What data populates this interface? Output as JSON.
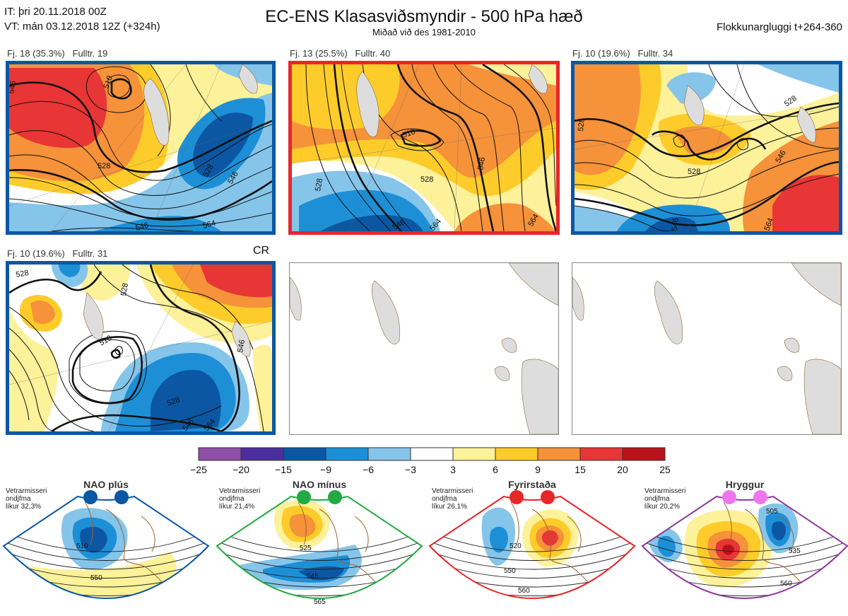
{
  "header": {
    "it_line": "IT: þri 20.11.2018 00Z",
    "vt_line": "VT: mán 03.12.2018 12Z  (+324h)",
    "title": "EC-ENS Klasasviðsmyndir - 500 hPa hæð",
    "subtitle": "Miðað við des 1981-2010",
    "window": "Flokkunargluggi t+264-360"
  },
  "panels": [
    {
      "label": "Fj. 18 (35.3%)",
      "fulltr": "Fulltr. 19",
      "border": "#0b57a4",
      "contours": [
        "528",
        "510",
        "546",
        "528",
        "546",
        "564",
        "546"
      ]
    },
    {
      "label": "Fj. 13 (25.5%)",
      "fulltr": "Fulltr. 40",
      "border": "#e8262a",
      "contours": [
        "510",
        "528",
        "546",
        "564",
        "546",
        "564",
        "528"
      ]
    },
    {
      "label": "Fj. 10 (19.6%)",
      "fulltr": "Fulltr. 34",
      "border": "#0b57a4",
      "contours": [
        "528",
        "528",
        "546",
        "564",
        "546",
        "528"
      ]
    },
    {
      "label": "Fj. 10 (19.6%)",
      "fulltr": "Fulltr. 31",
      "tag": "CR",
      "border": "#0b57a4",
      "contours": [
        "528",
        "510",
        "528",
        "546",
        "528",
        "546",
        "564"
      ]
    }
  ],
  "colorbar": {
    "ticks": [
      "−25",
      "−20",
      "−15",
      "−9",
      "−6",
      "−3",
      "3",
      "6",
      "9",
      "15",
      "20",
      "25"
    ],
    "colors": [
      "#8e4fa8",
      "#4b2f9e",
      "#0b57a4",
      "#1d8fd6",
      "#86c5ea",
      "#ffffff",
      "#fdf19a",
      "#fdcc2a",
      "#f5923a",
      "#e83535",
      "#b8121b"
    ]
  },
  "regimes": [
    {
      "name": "NAO plús",
      "note1": "Vetrarmisseri",
      "note2": "ondjfma",
      "note3": "líkur 32,3%",
      "dot": "#0b57a4",
      "border": "#0b57a4",
      "contours": [
        "510",
        "550"
      ]
    },
    {
      "name": "NAO mínus",
      "note1": "Vetrarmisseri",
      "note2": "ondjfma",
      "note3": "líkur 21,4%",
      "dot": "#22aa44",
      "border": "#22aa44",
      "contours": [
        "525",
        "545",
        "565"
      ]
    },
    {
      "name": "Fyrirstaða",
      "note1": "Vetrarmisseri",
      "note2": "ondjfma",
      "note3": "líkur 26,1%",
      "dot": "#e8262a",
      "border": "#e8262a",
      "contours": [
        "520",
        "550",
        "560"
      ]
    },
    {
      "name": "Hryggur",
      "note1": "Vetrarmisseri",
      "note2": "ondjfma",
      "note3": "líkur 20,2%",
      "dot": "#ee77ee",
      "border": "#8e3a9a",
      "contours": [
        "505",
        "535",
        "560"
      ]
    }
  ]
}
